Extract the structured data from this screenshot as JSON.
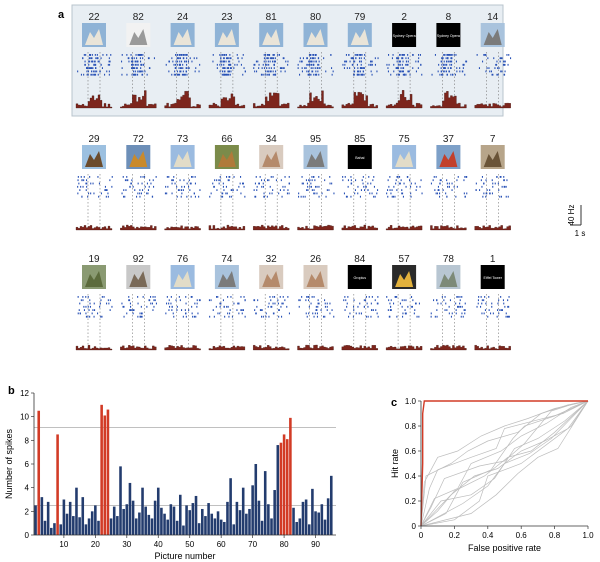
{
  "panel_labels": {
    "a": "a",
    "b": "b",
    "c": "c"
  },
  "scale_bar": {
    "y_label": "40 Hz",
    "x_label": "1 s"
  },
  "stimuli_rows": [
    [
      {
        "id": "22",
        "icon": "opera-house-photo",
        "hi": true
      },
      {
        "id": "82",
        "icon": "opera-house-drawing",
        "hi": true
      },
      {
        "id": "24",
        "icon": "opera-house-photo",
        "hi": true
      },
      {
        "id": "23",
        "icon": "opera-house-photo",
        "hi": true
      },
      {
        "id": "81",
        "icon": "opera-house-photo",
        "hi": true
      },
      {
        "id": "80",
        "icon": "opera-house-photo",
        "hi": true
      },
      {
        "id": "79",
        "icon": "opera-house-photo",
        "hi": true
      },
      {
        "id": "2",
        "icon": "text-card",
        "text": "Sydney Opera",
        "hi": true
      },
      {
        "id": "8",
        "icon": "text-card",
        "text": "Sydney Opera",
        "hi": true
      },
      {
        "id": "14",
        "icon": "tower-photo",
        "hi": false
      }
    ],
    [
      {
        "id": "29",
        "icon": "eiffel-tower-photo",
        "hi": false
      },
      {
        "id": "72",
        "icon": "temple-photo",
        "hi": false
      },
      {
        "id": "73",
        "icon": "leaning-tower-photo",
        "hi": false
      },
      {
        "id": "66",
        "icon": "animal-photo",
        "hi": false
      },
      {
        "id": "34",
        "icon": "face-photo",
        "hi": false
      },
      {
        "id": "95",
        "icon": "tower-photo",
        "hi": false
      },
      {
        "id": "85",
        "icon": "text-card",
        "text": "Bahai",
        "hi": false
      },
      {
        "id": "75",
        "icon": "leaning-tower-photo",
        "hi": false
      },
      {
        "id": "37",
        "icon": "bridge-photo",
        "hi": false
      },
      {
        "id": "7",
        "icon": "building-photo",
        "hi": false
      }
    ],
    [
      {
        "id": "19",
        "icon": "snake-photo",
        "hi": false
      },
      {
        "id": "92",
        "icon": "monument-photo",
        "hi": false
      },
      {
        "id": "76",
        "icon": "leaning-tower-photo",
        "hi": false
      },
      {
        "id": "74",
        "icon": "tower-photo",
        "hi": false
      },
      {
        "id": "32",
        "icon": "face-photo",
        "hi": false
      },
      {
        "id": "26",
        "icon": "face-photo",
        "hi": false
      },
      {
        "id": "84",
        "icon": "text-card",
        "text": "Gropius",
        "hi": false
      },
      {
        "id": "57",
        "icon": "athlete-photo",
        "hi": false
      },
      {
        "id": "78",
        "icon": "landscape-photo",
        "hi": false
      },
      {
        "id": "1",
        "icon": "text-card",
        "text": "Eiffel Tower",
        "hi": false
      }
    ]
  ],
  "colors": {
    "highlight": "#d23b26",
    "bar_blue": "#233c6e",
    "raster": "#2952b6",
    "psth": "#7d251c",
    "frame_bg": "#e8eef3",
    "grid": "#bdbdbd"
  },
  "chart_data": [
    {
      "type": "bar",
      "xlabel": "Picture number",
      "ylabel": "Number of spikes",
      "xlim": [
        0.5,
        96.5
      ],
      "ylim": [
        0,
        12
      ],
      "x_ticks": [
        10,
        20,
        30,
        40,
        50,
        60,
        70,
        80,
        90
      ],
      "y_ticks": [
        0,
        2,
        4,
        6,
        8,
        10,
        12
      ],
      "reference_lines": [
        2.5,
        9.1
      ],
      "grid": false,
      "x": [
        1,
        2,
        3,
        4,
        5,
        6,
        7,
        8,
        9,
        10,
        11,
        12,
        13,
        14,
        15,
        16,
        17,
        18,
        19,
        20,
        21,
        22,
        23,
        24,
        25,
        26,
        27,
        28,
        29,
        30,
        31,
        32,
        33,
        34,
        35,
        36,
        37,
        38,
        39,
        40,
        41,
        42,
        43,
        44,
        45,
        46,
        47,
        48,
        49,
        50,
        51,
        52,
        53,
        54,
        55,
        56,
        57,
        58,
        59,
        60,
        61,
        62,
        63,
        64,
        65,
        66,
        67,
        68,
        69,
        70,
        71,
        72,
        73,
        74,
        75,
        76,
        77,
        78,
        79,
        80,
        81,
        82,
        83,
        84,
        85,
        86,
        87,
        88,
        89,
        90,
        91,
        92,
        93,
        94,
        95
      ],
      "values": [
        2.5,
        10.5,
        3.2,
        1.2,
        2.8,
        0.6,
        1.0,
        8.5,
        0.9,
        3.0,
        1.8,
        2.8,
        1.6,
        4.0,
        1.5,
        3.2,
        0.9,
        1.4,
        2.0,
        2.5,
        1.2,
        11.0,
        10.1,
        10.6,
        1.4,
        2.4,
        1.6,
        5.8,
        2.2,
        2.6,
        4.4,
        2.9,
        1.4,
        1.9,
        4.0,
        2.4,
        1.7,
        1.4,
        2.9,
        4.0,
        2.3,
        1.8,
        1.3,
        2.6,
        2.4,
        1.2,
        3.4,
        0.8,
        2.5,
        2.1,
        2.7,
        3.3,
        1.0,
        2.2,
        1.6,
        2.7,
        1.8,
        1.4,
        2.0,
        1.3,
        1.1,
        2.8,
        4.8,
        0.9,
        2.8,
        2.1,
        4.0,
        1.8,
        2.2,
        4.2,
        6.0,
        2.9,
        1.2,
        5.4,
        2.6,
        1.4,
        3.8,
        7.6,
        7.8,
        8.5,
        8.1,
        9.9,
        2.3,
        1.1,
        1.4,
        2.8,
        3.0,
        0.9,
        3.9,
        2.0,
        1.9,
        2.6,
        1.3,
        3.1,
        5.0
      ],
      "highlighted": [
        2,
        8,
        22,
        23,
        24,
        79,
        80,
        81,
        82
      ]
    },
    {
      "type": "line",
      "xlabel": "False positive rate",
      "ylabel": "Hit rate",
      "xlim": [
        0,
        1
      ],
      "ylim": [
        0,
        1
      ],
      "x_ticks": [
        0,
        0.2,
        0.4,
        0.6,
        0.8,
        1.0
      ],
      "y_ticks": [
        0,
        0.2,
        0.4,
        0.6,
        0.8,
        1.0
      ],
      "highlighted_series": {
        "x": [
          0,
          0.01,
          0.01,
          0.02,
          1.0
        ],
        "y": [
          0,
          0.5,
          0.9,
          1.0,
          1.0
        ]
      },
      "shuffled_series": [
        {
          "x": [
            0,
            0.08,
            0.22,
            0.3,
            0.48,
            0.6,
            0.75,
            0.9,
            1
          ],
          "y": [
            0,
            0.22,
            0.3,
            0.5,
            0.6,
            0.72,
            0.82,
            0.95,
            1
          ]
        },
        {
          "x": [
            0,
            0.15,
            0.25,
            0.42,
            0.55,
            0.62,
            0.8,
            1
          ],
          "y": [
            0,
            0.1,
            0.35,
            0.45,
            0.7,
            0.8,
            0.88,
            1
          ]
        },
        {
          "x": [
            0,
            0.05,
            0.1,
            0.3,
            0.45,
            0.5,
            0.7,
            0.85,
            1
          ],
          "y": [
            0,
            0.3,
            0.45,
            0.55,
            0.62,
            0.78,
            0.85,
            0.9,
            1
          ]
        },
        {
          "x": [
            0,
            0.2,
            0.35,
            0.4,
            0.6,
            0.75,
            0.9,
            1
          ],
          "y": [
            0,
            0.05,
            0.2,
            0.4,
            0.5,
            0.65,
            0.8,
            1
          ]
        },
        {
          "x": [
            0,
            0.1,
            0.2,
            0.38,
            0.52,
            0.66,
            0.8,
            1
          ],
          "y": [
            0,
            0.12,
            0.28,
            0.4,
            0.55,
            0.6,
            0.75,
            1
          ]
        },
        {
          "x": [
            0,
            0.03,
            0.18,
            0.28,
            0.4,
            0.58,
            0.72,
            0.88,
            1
          ],
          "y": [
            0,
            0.4,
            0.5,
            0.6,
            0.68,
            0.75,
            0.9,
            0.97,
            1
          ]
        },
        {
          "x": [
            0,
            0.25,
            0.4,
            0.5,
            0.65,
            0.78,
            1
          ],
          "y": [
            0,
            0.18,
            0.32,
            0.5,
            0.58,
            0.7,
            1
          ]
        },
        {
          "x": [
            0,
            0.12,
            0.3,
            0.44,
            0.56,
            0.7,
            0.86,
            1
          ],
          "y": [
            0,
            0.2,
            0.25,
            0.38,
            0.62,
            0.7,
            0.84,
            1
          ]
        },
        {
          "x": [
            0,
            0.06,
            0.14,
            0.35,
            0.5,
            0.62,
            0.78,
            0.92,
            1
          ],
          "y": [
            0,
            0.15,
            0.38,
            0.48,
            0.52,
            0.66,
            0.92,
            0.98,
            1
          ]
        },
        {
          "x": [
            0,
            0.3,
            0.45,
            0.58,
            0.7,
            0.82,
            1
          ],
          "y": [
            0,
            0.1,
            0.25,
            0.42,
            0.55,
            0.62,
            1
          ]
        },
        {
          "x": [
            0,
            0.02,
            0.1,
            0.22,
            0.36,
            0.5,
            0.64,
            0.8,
            1
          ],
          "y": [
            0,
            0.35,
            0.55,
            0.6,
            0.72,
            0.8,
            0.86,
            0.94,
            1
          ]
        },
        {
          "x": [
            0,
            0.18,
            0.32,
            0.46,
            0.6,
            0.74,
            0.88,
            1
          ],
          "y": [
            0,
            0.25,
            0.4,
            0.46,
            0.6,
            0.68,
            0.78,
            1
          ]
        }
      ]
    }
  ]
}
